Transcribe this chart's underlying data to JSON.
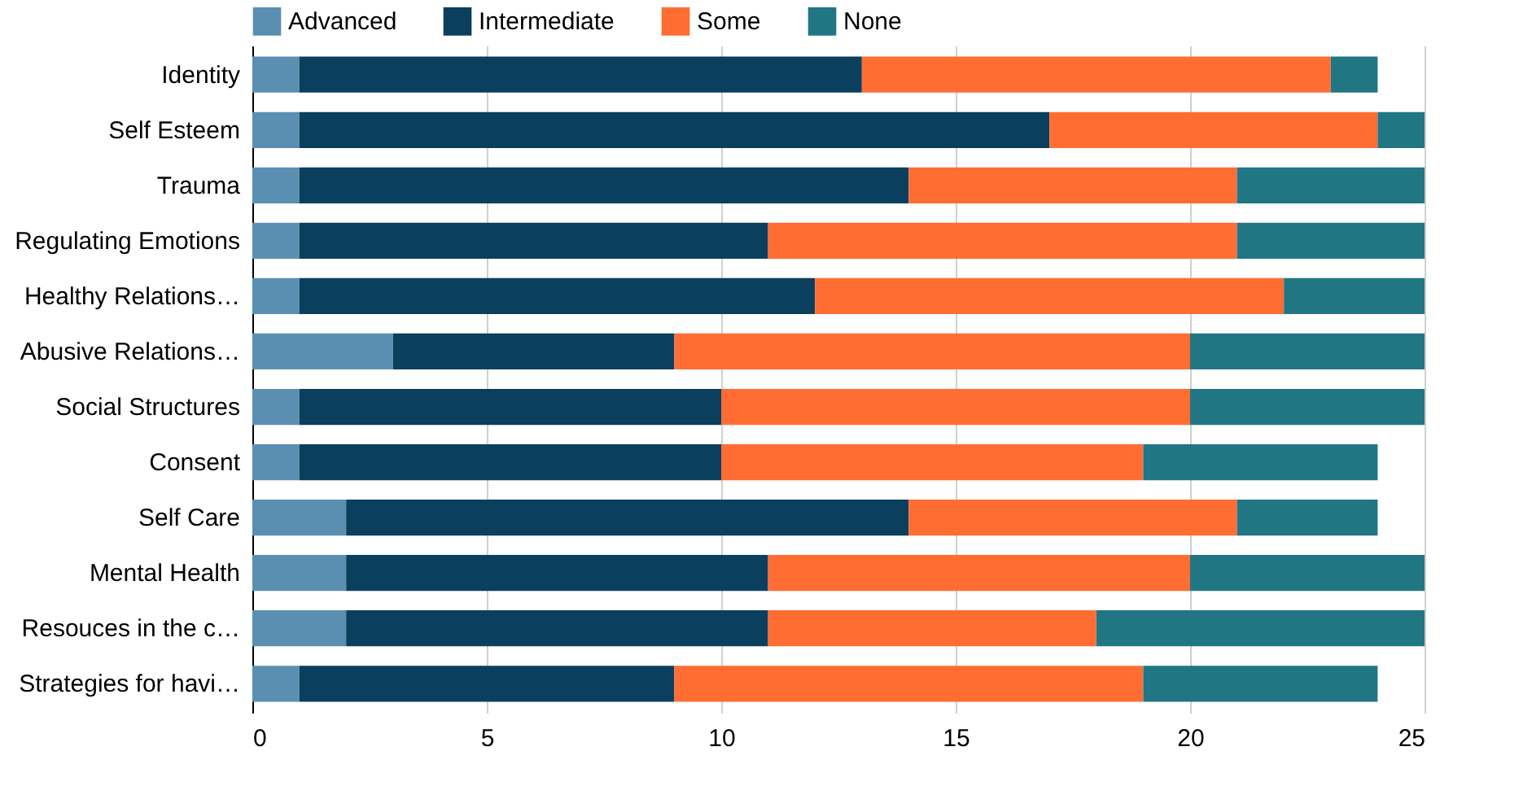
{
  "chart_data": {
    "type": "bar",
    "orientation": "horizontal",
    "stacked": true,
    "categories": [
      "Identity",
      "Self Esteem",
      "Trauma",
      "Regulating Emotions",
      "Healthy Relations…",
      "Abusive Relations…",
      "Social Structures",
      "Consent",
      "Self Care",
      "Mental Health",
      "Resouces in the c…",
      "Strategies for havi…"
    ],
    "series": [
      {
        "name": "Advanced",
        "color": "#5b8fb2",
        "values": [
          1,
          1,
          1,
          1,
          1,
          3,
          1,
          1,
          2,
          2,
          2,
          1
        ]
      },
      {
        "name": "Intermediate",
        "color": "#0b3f5e",
        "values": [
          12,
          16,
          13,
          10,
          11,
          6,
          9,
          9,
          12,
          9,
          9,
          8
        ]
      },
      {
        "name": "Some",
        "color": "#ff6d33",
        "values": [
          10,
          7,
          7,
          10,
          10,
          11,
          10,
          9,
          7,
          9,
          7,
          10
        ]
      },
      {
        "name": "None",
        "color": "#217684",
        "values": [
          1,
          1,
          4,
          4,
          3,
          5,
          5,
          5,
          3,
          5,
          7,
          5
        ]
      }
    ],
    "xlim": [
      0,
      25
    ],
    "xticks": [
      0,
      5,
      10,
      15,
      20,
      25
    ],
    "grid": "x",
    "legend": "top"
  }
}
